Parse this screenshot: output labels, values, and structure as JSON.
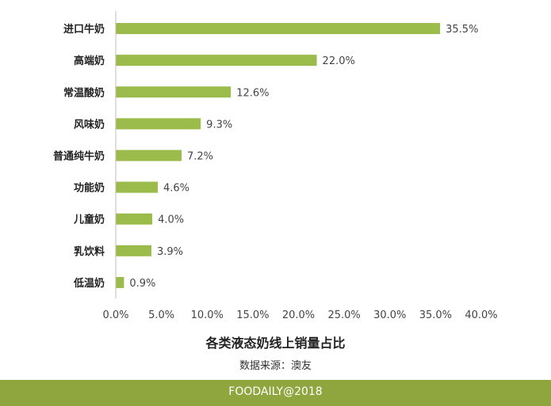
{
  "chart_data": {
    "type": "bar",
    "orientation": "horizontal",
    "title": "各类液态奶线上销量占比",
    "categories": [
      "进口牛奶",
      "高端奶",
      "常温酸奶",
      "风味奶",
      "普通纯牛奶",
      "功能奶",
      "儿童奶",
      "乳饮料",
      "低温奶"
    ],
    "values": [
      35.5,
      22.0,
      12.6,
      9.3,
      7.2,
      4.6,
      4.0,
      3.9,
      0.9
    ],
    "value_labels": [
      "35.5%",
      "22.0%",
      "12.6%",
      "9.3%",
      "7.2%",
      "4.6%",
      "4.0%",
      "3.9%",
      "0.9%"
    ],
    "xlim": [
      0,
      40
    ],
    "x_ticks": [
      0,
      5,
      10,
      15,
      20,
      25,
      30,
      35,
      40
    ],
    "x_tick_labels": [
      "0.0%",
      "5.0%",
      "10.0%",
      "15.0%",
      "20.0%",
      "25.0%",
      "30.0%",
      "35.0%",
      "40.0%"
    ],
    "grid": false,
    "bar_color": "#9bbb4a"
  },
  "source_text": "数据来源：澳友",
  "footer_text": "FOODAILY@2018",
  "colors": {
    "bar": "#9bbb4a",
    "footer": "#8fa63f"
  }
}
